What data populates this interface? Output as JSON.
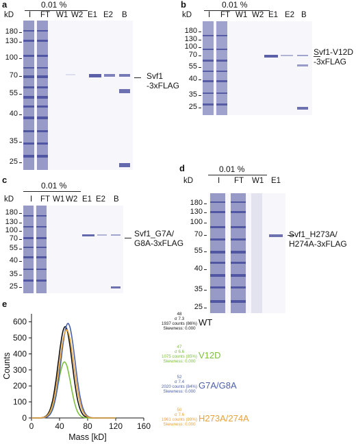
{
  "panels": [
    {
      "letter": "a",
      "percent": "0.01 %",
      "kd_label": "kD",
      "lanes": [
        "I",
        "FT",
        "W1",
        "W2",
        "E1",
        "E2",
        "B"
      ],
      "ticks": [
        "180",
        "130",
        "100",
        "70",
        "55",
        "40",
        "35",
        "25"
      ],
      "annotation": [
        "Svf1",
        "-3xFLAG"
      ]
    },
    {
      "letter": "b",
      "percent": "0.01 %",
      "kd_label": "kD",
      "lanes": [
        "I",
        "FT",
        "W1",
        "W2",
        "E1",
        "E2",
        "B"
      ],
      "ticks": [
        "180",
        "130",
        "100",
        "70",
        "55",
        "40",
        "35",
        "25"
      ],
      "annotation": [
        "Svf1-V12D",
        "-3xFLAG"
      ]
    },
    {
      "letter": "c",
      "percent": "0.01 %",
      "kd_label": "kD",
      "lanes": [
        "I",
        "FT",
        "W1",
        "W2",
        "E1",
        "E2",
        "B"
      ],
      "ticks": [
        "180",
        "130",
        "100",
        "70",
        "55",
        "40",
        "35",
        "25"
      ],
      "annotation": [
        "Svf1_G7A/",
        "G8A-3xFLAG"
      ]
    },
    {
      "letter": "d",
      "percent": "0.01 %",
      "kd_label": "kD",
      "lanes": [
        "I",
        "FT",
        "W1",
        "E1"
      ],
      "ticks": [
        "180",
        "130",
        "100",
        "70",
        "55",
        "40",
        "35",
        "25"
      ],
      "annotation": [
        "Svf1_H273A/",
        "H274A-3xFLAG"
      ]
    }
  ],
  "panel_e": {
    "letter": "e"
  },
  "chart_data": {
    "type": "line",
    "title": "",
    "xlabel": "Mass [kD]",
    "ylabel": "Counts",
    "xlim": [
      0,
      160
    ],
    "ylim": [
      0,
      650
    ],
    "xticks": [
      "0",
      "40",
      "80",
      "120",
      "160"
    ],
    "yticks": [
      "0",
      "100",
      "200",
      "300",
      "400",
      "500",
      "600"
    ],
    "series": [
      {
        "name": "WT",
        "color": "#111111",
        "peak_x": 48,
        "peak_y": 570,
        "sigma": 7.3,
        "stats": [
          "48",
          "σ 7.3",
          "1937 counts (86%)",
          "Skewness: 0.000"
        ]
      },
      {
        "name": "V12D",
        "color": "#7bbf3a",
        "peak_x": 47,
        "peak_y": 350,
        "sigma": 6.6,
        "stats": [
          "47",
          "σ 6.6",
          "1075 counts (85%)",
          "Skewness: 0.000"
        ]
      },
      {
        "name": "G7A/G8A",
        "color": "#4a5fa8",
        "peak_x": 52,
        "peak_y": 590,
        "sigma": 7.4,
        "stats": [
          "52",
          "σ 7.4",
          "2020 counts (84%)",
          "Skewness: 0.000"
        ]
      },
      {
        "name": "H273A/274A",
        "color": "#e8a23c",
        "peak_x": 50,
        "peak_y": 550,
        "sigma": 7.6,
        "stats": [
          "50",
          "σ 7.6",
          "1961 counts (89%)",
          "Skewness: 0.000"
        ]
      }
    ]
  }
}
